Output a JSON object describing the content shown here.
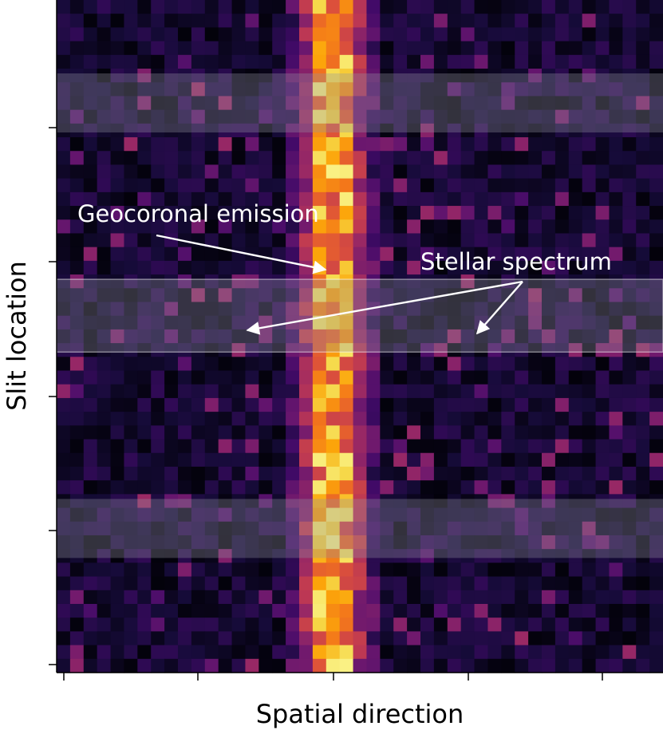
{
  "chart_data": {
    "type": "heatmap",
    "xlabel": "Spatial direction",
    "ylabel": "Slit location",
    "colormap": "inferno",
    "grid": false,
    "n_cols": 45,
    "n_rows": 49,
    "x_tick_count": 5,
    "y_tick_count": 5,
    "emission_columns": [
      19,
      20,
      21
    ],
    "shaded_row_bands": [
      [
        5,
        9
      ],
      [
        20,
        25
      ],
      [
        36,
        40
      ]
    ],
    "annotations": [
      {
        "text": "Geocoronal emission",
        "target": "emission line"
      },
      {
        "text": "Stellar spectrum",
        "target": "stellar spectrum band"
      }
    ]
  }
}
